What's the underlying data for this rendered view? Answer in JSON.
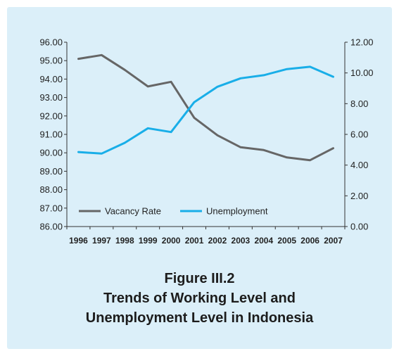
{
  "figure": {
    "number": "Figure III.2",
    "title_line1": "Trends of Working Level and",
    "title_line2": "Unemployment Level in Indonesia"
  },
  "colors": {
    "background": "#dbeff9",
    "vacancy": "#666666",
    "unemployment": "#19aee8"
  },
  "chart_data": {
    "type": "line",
    "categories": [
      "1996",
      "1997",
      "1998",
      "1999",
      "2000",
      "2001",
      "2002",
      "2003",
      "2004",
      "2005",
      "2006",
      "2007"
    ],
    "series": [
      {
        "name": "Vacancy Rate",
        "axis": "left",
        "color": "#666666",
        "values": [
          95.1,
          95.3,
          94.5,
          93.6,
          93.85,
          91.9,
          90.95,
          90.3,
          90.15,
          89.75,
          89.6,
          90.25
        ]
      },
      {
        "name": "Unemployment",
        "axis": "right",
        "color": "#19aee8",
        "values": [
          4.85,
          4.75,
          5.45,
          6.4,
          6.15,
          8.1,
          9.1,
          9.65,
          9.85,
          10.25,
          10.4,
          9.75
        ]
      }
    ],
    "y_left": {
      "lim": [
        86,
        96
      ],
      "ticks": [
        "86.00",
        "87.00",
        "88.00",
        "89.00",
        "90.00",
        "91.00",
        "92.00",
        "93.00",
        "94.00",
        "95.00",
        "96.00"
      ]
    },
    "y_right": {
      "lim": [
        0,
        12
      ],
      "ticks": [
        "0.00",
        "2.00",
        "4.00",
        "6.00",
        "8.00",
        "10.00",
        "12.00"
      ]
    },
    "grid": false,
    "legend_position": "bottom-left"
  }
}
